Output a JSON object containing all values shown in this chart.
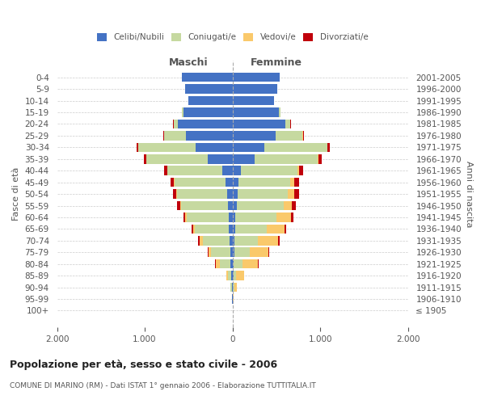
{
  "age_groups": [
    "100+",
    "95-99",
    "90-94",
    "85-89",
    "80-84",
    "75-79",
    "70-74",
    "65-69",
    "60-64",
    "55-59",
    "50-54",
    "45-49",
    "40-44",
    "35-39",
    "30-34",
    "25-29",
    "20-24",
    "15-19",
    "10-14",
    "5-9",
    "0-4"
  ],
  "birth_years": [
    "≤ 1905",
    "1906-1910",
    "1911-1915",
    "1916-1920",
    "1921-1925",
    "1926-1930",
    "1931-1935",
    "1936-1940",
    "1941-1945",
    "1946-1950",
    "1951-1955",
    "1956-1960",
    "1961-1965",
    "1966-1970",
    "1971-1975",
    "1976-1980",
    "1981-1985",
    "1986-1990",
    "1991-1995",
    "1996-2000",
    "2001-2005"
  ],
  "maschi_celibe": [
    0,
    2,
    5,
    10,
    20,
    25,
    30,
    40,
    45,
    55,
    60,
    80,
    120,
    280,
    420,
    530,
    620,
    560,
    500,
    540,
    580
  ],
  "maschi_coniugato": [
    0,
    5,
    15,
    40,
    120,
    220,
    310,
    390,
    480,
    530,
    570,
    580,
    620,
    700,
    650,
    250,
    50,
    15,
    5,
    2,
    1
  ],
  "maschi_vedovo": [
    0,
    2,
    5,
    20,
    50,
    30,
    35,
    20,
    15,
    10,
    8,
    5,
    3,
    2,
    1,
    2,
    1,
    0,
    0,
    0,
    0
  ],
  "maschi_divorziato": [
    0,
    0,
    0,
    0,
    5,
    8,
    15,
    15,
    20,
    35,
    40,
    40,
    35,
    25,
    20,
    5,
    3,
    1,
    0,
    0,
    0
  ],
  "femmine_celibe": [
    0,
    2,
    5,
    10,
    15,
    18,
    22,
    30,
    35,
    50,
    55,
    70,
    100,
    250,
    360,
    490,
    600,
    530,
    470,
    510,
    540
  ],
  "femmine_coniugato": [
    0,
    5,
    15,
    35,
    95,
    175,
    270,
    360,
    470,
    530,
    580,
    590,
    640,
    720,
    720,
    310,
    60,
    15,
    5,
    2,
    1
  ],
  "femmine_vedovo": [
    0,
    10,
    30,
    90,
    180,
    220,
    230,
    200,
    160,
    100,
    70,
    40,
    20,
    10,
    5,
    5,
    2,
    0,
    0,
    0,
    0
  ],
  "femmine_divorziato": [
    0,
    0,
    0,
    2,
    5,
    10,
    15,
    20,
    30,
    45,
    55,
    60,
    50,
    35,
    25,
    8,
    3,
    1,
    0,
    0,
    0
  ],
  "color_celibe": "#4472c4",
  "color_coniugato": "#c6d9a0",
  "color_vedovo": "#fac96b",
  "color_divorziato": "#c0000b",
  "title": "Popolazione per età, sesso e stato civile - 2006",
  "subtitle": "COMUNE DI MARINO (RM) - Dati ISTAT 1° gennaio 2006 - Elaborazione TUTTITALIA.IT",
  "ylabel_left": "Fasce di età",
  "ylabel_right": "Anni di nascita",
  "xlabel_maschi": "Maschi",
  "xlabel_femmine": "Femmine",
  "bg_color": "#ffffff",
  "grid_color": "#cccccc",
  "bar_height": 0.8,
  "xlim": 2000
}
